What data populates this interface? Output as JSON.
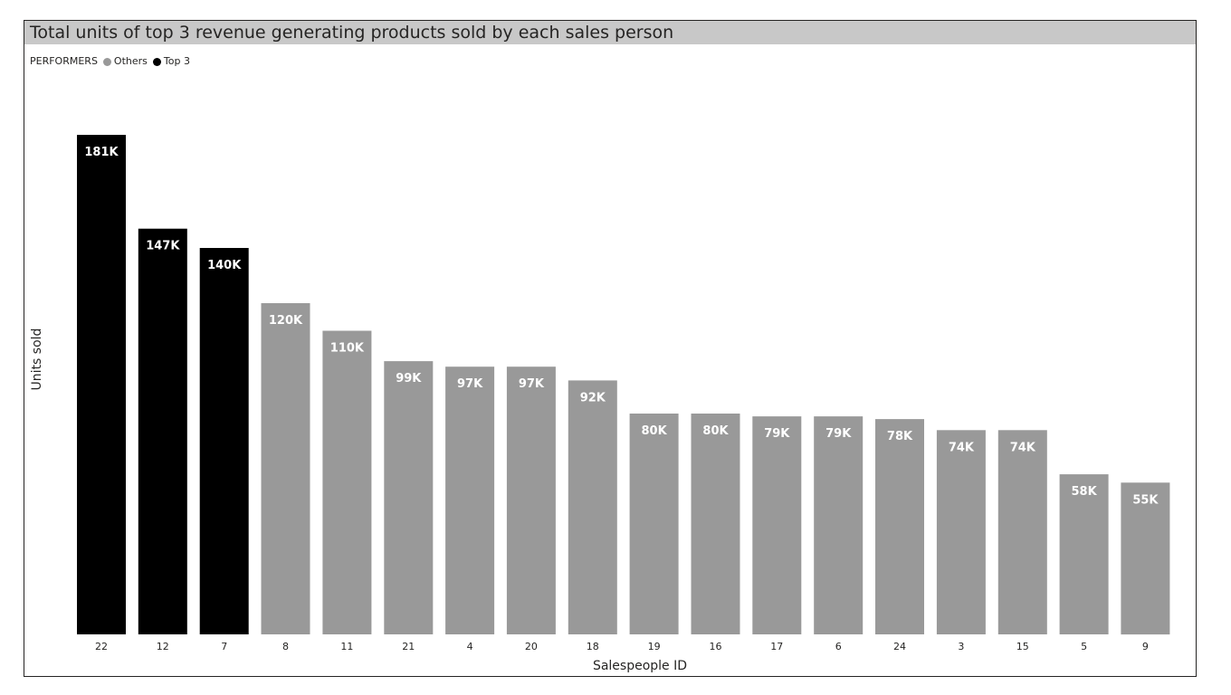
{
  "chart_data": {
    "type": "bar",
    "title": "Total units of top 3 revenue generating products sold by each sales person",
    "xlabel": "Salespeople ID",
    "ylabel": "Units sold",
    "legend": {
      "title": "PERFORMERS",
      "position": "top-left",
      "items": [
        {
          "name": "Others",
          "color": "#999999"
        },
        {
          "name": "Top 3",
          "color": "#000000"
        }
      ]
    },
    "categories": [
      "22",
      "12",
      "7",
      "8",
      "11",
      "21",
      "4",
      "20",
      "18",
      "19",
      "16",
      "17",
      "6",
      "24",
      "3",
      "15",
      "5",
      "9"
    ],
    "values": [
      181,
      147,
      140,
      120,
      110,
      99,
      97,
      97,
      92,
      80,
      80,
      79,
      79,
      78,
      74,
      74,
      58,
      55
    ],
    "value_unit": "K",
    "data_labels": [
      "181K",
      "147K",
      "140K",
      "120K",
      "110K",
      "99K",
      "97K",
      "97K",
      "92K",
      "80K",
      "80K",
      "79K",
      "79K",
      "78K",
      "74K",
      "74K",
      "58K",
      "55K"
    ],
    "group": [
      "Top 3",
      "Top 3",
      "Top 3",
      "Others",
      "Others",
      "Others",
      "Others",
      "Others",
      "Others",
      "Others",
      "Others",
      "Others",
      "Others",
      "Others",
      "Others",
      "Others",
      "Others",
      "Others"
    ],
    "ylim": [
      0,
      200
    ],
    "grid": false,
    "colors": {
      "Top 3": "#000000",
      "Others": "#999999"
    }
  }
}
